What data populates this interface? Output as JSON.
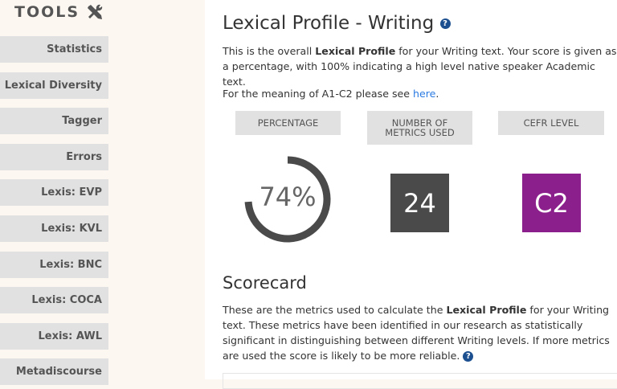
{
  "sidebar": {
    "title": "TOOLS",
    "icon": "tools-icon",
    "items": [
      {
        "label": "Statistics"
      },
      {
        "label": "Lexical Diversity"
      },
      {
        "label": "Tagger"
      },
      {
        "label": "Errors"
      },
      {
        "label": "Lexis: EVP"
      },
      {
        "label": "Lexis: KVL"
      },
      {
        "label": "Lexis: BNC"
      },
      {
        "label": "Lexis: COCA"
      },
      {
        "label": "Lexis: AWL"
      },
      {
        "label": "Metadiscourse"
      }
    ]
  },
  "main": {
    "title": "Lexical Profile - Writing",
    "intro_pre": "This is the overall ",
    "intro_bold": "Lexical Profile",
    "intro_post": " for your Writing text. Your score is given as a percentage, with 100% indicating a high level native speaker Academic text.",
    "meaning_pre": "For the meaning of A1-C2 please see ",
    "meaning_link": "here",
    "meaning_post": ".",
    "metrics": {
      "percentage_label": "PERCENTAGE",
      "percentage_value": "74%",
      "percentage_fraction": 0.74,
      "count_label": "NUMBER OF METRICS USED",
      "count_value": "24",
      "cefr_label": "CEFR LEVEL",
      "cefr_value": "C2"
    },
    "colors": {
      "ring": "#4a4a4a",
      "count_box": "#4a4a4a",
      "cefr_box": "#8b1f8b"
    },
    "scorecard_title": "Scorecard",
    "score_pre": "These are the metrics used to calculate the ",
    "score_bold": "Lexical Profile",
    "score_post": " for your Writing text. These metrics have been identified in our research as statistically significant in distinguishing between different Writing levels. If more metrics are used the score is likely to be more reliable. "
  }
}
